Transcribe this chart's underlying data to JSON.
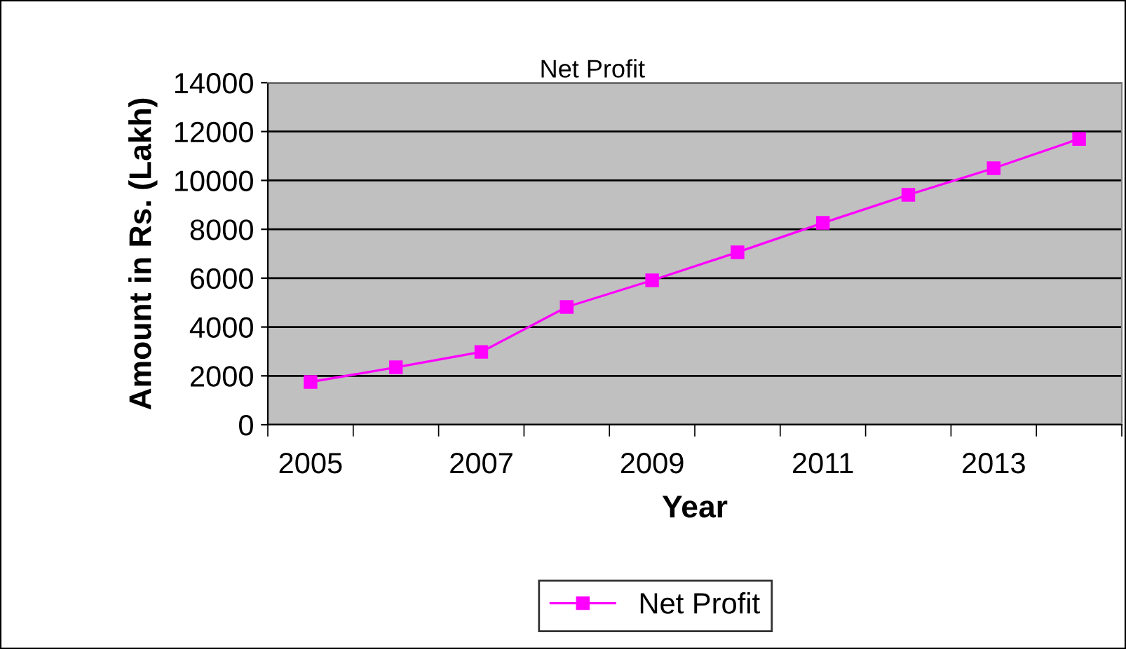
{
  "chart_data": {
    "type": "line",
    "title": "Net Profit",
    "xlabel": "Year",
    "ylabel": "Amount in Rs. (Lakh)",
    "categories": [
      "2005",
      null,
      "2007",
      null,
      "2009",
      null,
      "2011",
      null,
      "2013",
      null
    ],
    "series": [
      {
        "name": "Net Profit",
        "color": "#ff00ff",
        "values": [
          1750,
          2350,
          2980,
          4820,
          5910,
          7060,
          8260,
          9410,
          10500,
          11700
        ]
      }
    ],
    "ylim": [
      0,
      14000
    ],
    "yticks": [
      0,
      2000,
      4000,
      6000,
      8000,
      10000,
      12000,
      14000
    ],
    "grid": "y",
    "legend": "bottom",
    "marker": "square",
    "line_style": "solid"
  }
}
